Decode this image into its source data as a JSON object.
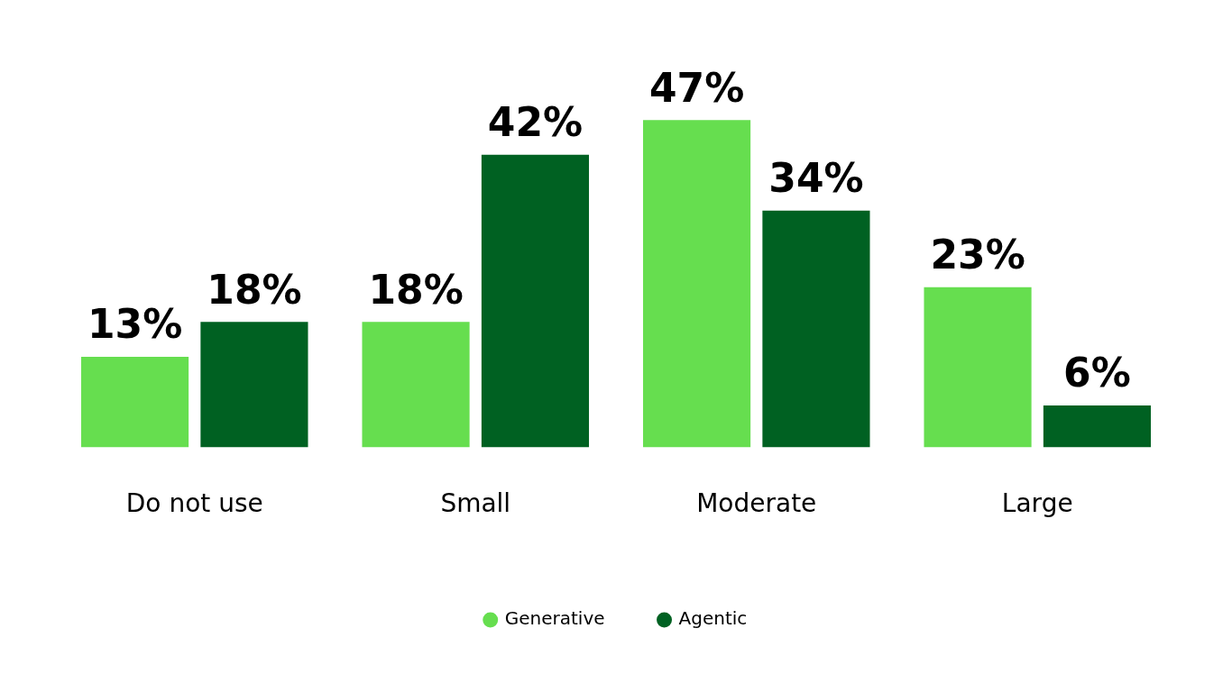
{
  "chart_data": {
    "type": "bar",
    "categories": [
      "Do not use",
      "Small",
      "Moderate",
      "Large"
    ],
    "series": [
      {
        "name": "Generative",
        "color": "#66de4f",
        "values": [
          13,
          18,
          47,
          23
        ],
        "value_labels": [
          "13%",
          "18%",
          "47%",
          "23%"
        ]
      },
      {
        "name": "Agentic",
        "color": "#006122",
        "values": [
          18,
          42,
          34,
          6
        ],
        "value_labels": [
          "18%",
          "42%",
          "34%",
          "6%"
        ]
      }
    ],
    "legend": "bottom"
  }
}
